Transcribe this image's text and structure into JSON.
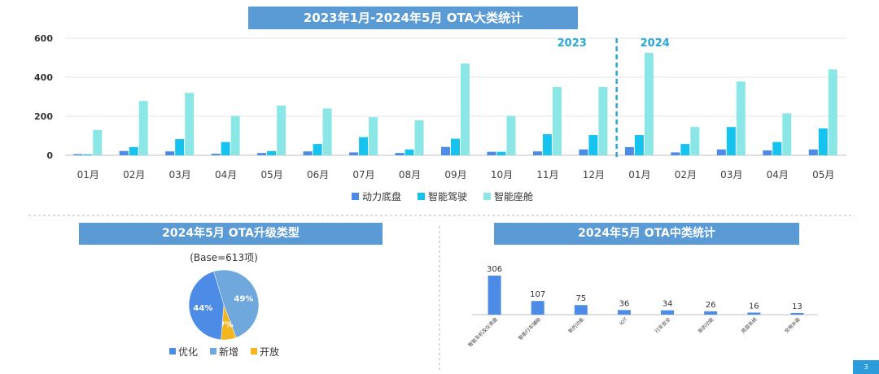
{
  "top_banner": "2023年1月-2024年5月 OTA大类统计",
  "pie_banner": "2024年5月 OTA升级类型",
  "mid_banner": "2024年5月 OTA中类统计",
  "page_number": "3",
  "chart_data": [
    {
      "type": "bar",
      "title": "2023年1月-2024年5月 OTA大类统计",
      "categories": [
        "01月",
        "02月",
        "03月",
        "04月",
        "05月",
        "06月",
        "07月",
        "08月",
        "09月",
        "10月",
        "11月",
        "12月",
        "01月",
        "02月",
        "03月",
        "04月",
        "05月"
      ],
      "series": [
        {
          "name": "动力底盘",
          "color": "#4c8be6",
          "values": [
            6,
            22,
            20,
            8,
            12,
            20,
            15,
            12,
            43,
            18,
            20,
            30,
            42,
            15,
            30,
            25,
            30
          ]
        },
        {
          "name": "智能驾驶",
          "color": "#16c2ee",
          "values": [
            5,
            42,
            83,
            68,
            22,
            58,
            93,
            30,
            85,
            18,
            108,
            104,
            104,
            58,
            145,
            68,
            138
          ]
        },
        {
          "name": "智能座舱",
          "color": "#8be6e6",
          "values": [
            130,
            278,
            320,
            202,
            255,
            240,
            195,
            180,
            470,
            202,
            350,
            350,
            525,
            145,
            378,
            215,
            440
          ]
        }
      ],
      "ylim": [
        0,
        600
      ],
      "yticks": [
        "0",
        "200",
        "400",
        "600"
      ],
      "annotations": [
        {
          "text": "2023"
        },
        {
          "text": "2024"
        }
      ],
      "legend": "bottom",
      "grid": true
    },
    {
      "type": "pie",
      "title": "2024年5月 OTA升级类型",
      "subtitle": "(Base=613项)",
      "slices": [
        {
          "name": "优化",
          "value": 44,
          "label": "44%",
          "color": "#4c8be6"
        },
        {
          "name": "新增",
          "value": 49,
          "label": "49%",
          "color": "#6fa8dc"
        },
        {
          "name": "开放",
          "value": 7,
          "label": "7%",
          "color": "#f3b61f"
        }
      ],
      "legend": "bottom"
    },
    {
      "type": "bar",
      "title": "2024年5月 OTA中类统计",
      "categories": [
        "智能车机及仪表盘",
        "智能行车辅助",
        "新的功能",
        "IOT",
        "行车安全",
        "新的功能",
        "底盘系统",
        "充电补能"
      ],
      "values": [
        306,
        107,
        75,
        36,
        34,
        26,
        16,
        13
      ],
      "color": "#4c8be6"
    }
  ]
}
